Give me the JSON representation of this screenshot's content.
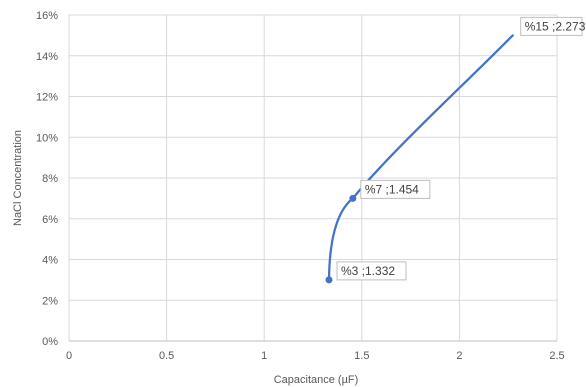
{
  "chart_data": {
    "type": "line",
    "title": "",
    "xlabel": "Capacitance (µF)",
    "ylabel": "NaCl Concentration",
    "xlim": [
      0,
      2.5
    ],
    "ylim": [
      0,
      0.16
    ],
    "grid": true,
    "legend": "none",
    "x_tick_labels": [
      "0",
      "0.5",
      "1",
      "1.5",
      "2",
      "2.5"
    ],
    "y_tick_labels": [
      "0%",
      "2%",
      "4%",
      "6%",
      "8%",
      "10%",
      "12%",
      "14%",
      "16%"
    ],
    "series": [
      {
        "color": "#4472c4",
        "points": [
          {
            "x": 1.332,
            "y": 0.03,
            "label": "%3 ;1.332",
            "marker": true
          },
          {
            "x": 1.454,
            "y": 0.07,
            "label": "%7 ;1.454",
            "marker": true
          },
          {
            "x": 2.273,
            "y": 0.15,
            "label": "%15 ;2.273",
            "marker": false
          }
        ]
      }
    ]
  }
}
